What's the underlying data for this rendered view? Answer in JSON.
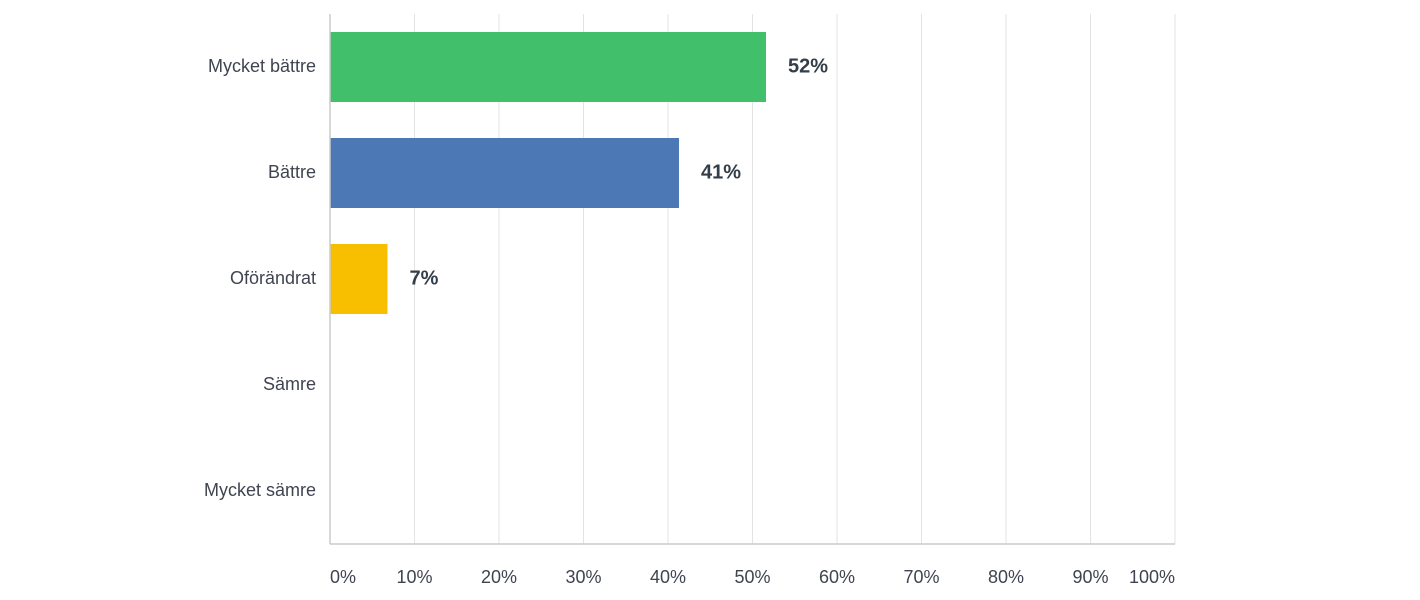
{
  "chart_data": {
    "type": "bar",
    "orientation": "horizontal",
    "title": "",
    "xlabel": "",
    "ylabel": "",
    "categories": [
      "Mycket bättre",
      "Bättre",
      "Oförändrat",
      "Sämre",
      "Mycket sämre"
    ],
    "values": [
      51.6,
      41.3,
      6.8,
      0,
      0
    ],
    "data_labels": [
      "52%",
      "41%",
      "7%",
      "",
      ""
    ],
    "colors": [
      "#41bf6b",
      "#4c79b5",
      "#f7bf00",
      "#e05c4b",
      "#8c5fb5"
    ],
    "xlim": [
      0,
      100
    ],
    "xticks": [
      0,
      10,
      20,
      30,
      40,
      50,
      60,
      70,
      80,
      90,
      100
    ],
    "xtick_labels": [
      "0%",
      "10%",
      "20%",
      "30%",
      "40%",
      "50%",
      "60%",
      "70%",
      "80%",
      "90%",
      "100%"
    ],
    "grid": true,
    "grid_color": "#e3e3e3",
    "axis_color": "#cccccc"
  }
}
